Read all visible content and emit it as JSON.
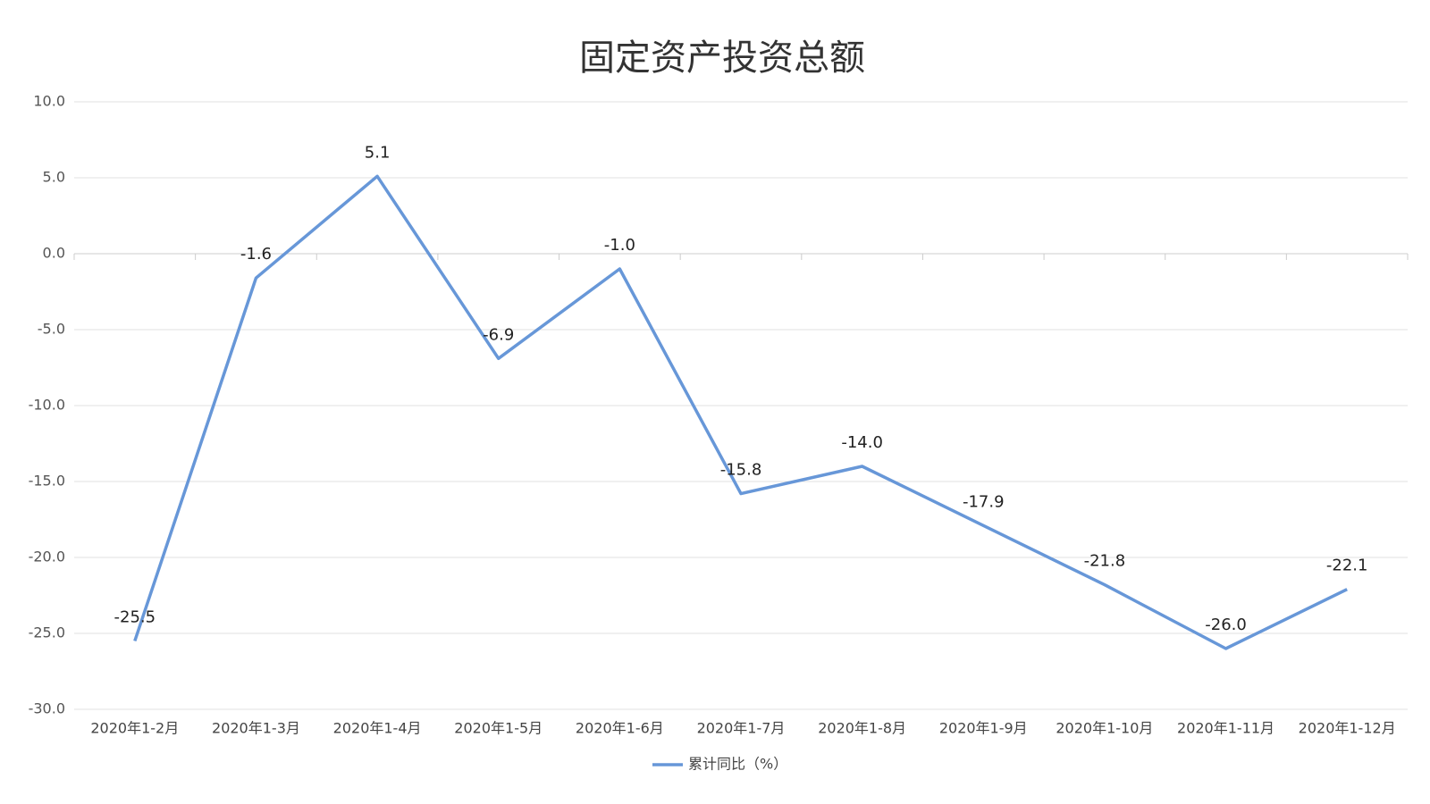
{
  "chart_data": {
    "type": "line",
    "title": "固定资产投资总额",
    "categories": [
      "2020年1-2月",
      "2020年1-3月",
      "2020年1-4月",
      "2020年1-5月",
      "2020年1-6月",
      "2020年1-7月",
      "2020年1-8月",
      "2020年1-9月",
      "2020年1-10月",
      "2020年1-11月",
      "2020年1-12月"
    ],
    "series": [
      {
        "name": "累计同比（%）",
        "color": "#6797d8",
        "values": [
          -25.5,
          -1.6,
          5.1,
          -6.9,
          -1.0,
          -15.8,
          -14.0,
          -17.9,
          -21.8,
          -26.0,
          -22.1
        ],
        "value_labels": [
          "-25.5",
          "-1.6",
          "5.1",
          "-6.9",
          "-1.0",
          "-15.8",
          "-14.0",
          "-17.9",
          "-21.8",
          "-26.0",
          "-22.1"
        ]
      }
    ],
    "ylim": [
      -30,
      10
    ],
    "yticks": [
      {
        "value": 10,
        "label": "10.0"
      },
      {
        "value": 5,
        "label": "5.0"
      },
      {
        "value": 0,
        "label": "0.0"
      },
      {
        "value": -5,
        "label": "-5.0"
      },
      {
        "value": -10,
        "label": "-10.0"
      },
      {
        "value": -15,
        "label": "-15.0"
      },
      {
        "value": -20,
        "label": "-20.0"
      },
      {
        "value": -25,
        "label": "-25.0"
      },
      {
        "value": -30,
        "label": "-30.0"
      }
    ],
    "grid": true,
    "legend": "bottom"
  }
}
